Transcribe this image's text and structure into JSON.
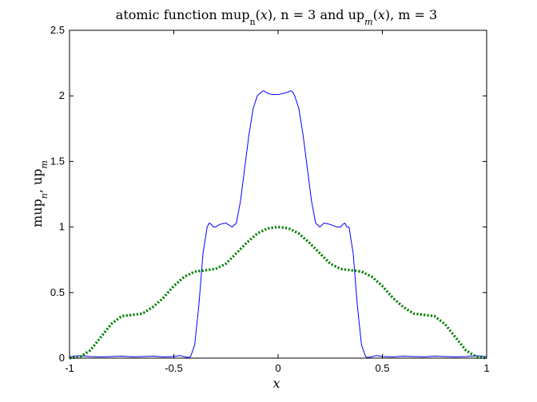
{
  "chart_data": {
    "type": "line",
    "title": {
      "prefix": "atomic function mup",
      "sub1": "n",
      "mid1": "(",
      "var1": "x",
      "mid2": "), n = 3 and up",
      "sub2": "m",
      "mid3": "(",
      "var2": "x",
      "suffix": "), m = 3"
    },
    "xlabel": "x",
    "ylabel": {
      "p1": "mup",
      "s1": "n",
      "p2": ", up",
      "s2": "m"
    },
    "xlim": [
      -1,
      1
    ],
    "ylim": [
      0,
      2.5
    ],
    "xticks": [
      -1,
      -0.5,
      0,
      0.5,
      1
    ],
    "xtick_labels": [
      "-1",
      "-0.5",
      "0",
      "0.5",
      "1"
    ],
    "yticks": [
      0,
      0.5,
      1,
      1.5,
      2,
      2.5
    ],
    "ytick_labels": [
      "0",
      "0.5",
      "1",
      "1.5",
      "2",
      "2.5"
    ],
    "grid": false,
    "legend": "none",
    "series": [
      {
        "color": "#0000ff",
        "style": "solid line",
        "x": [
          -1,
          -0.98,
          -0.95,
          -0.9,
          -0.85,
          -0.8,
          -0.75,
          -0.7,
          -0.65,
          -0.6,
          -0.55,
          -0.5,
          -0.47,
          -0.45,
          -0.43,
          -0.42,
          -0.4,
          -0.38,
          -0.36,
          -0.34,
          -0.33,
          -0.32,
          -0.31,
          -0.3,
          -0.28,
          -0.25,
          -0.22,
          -0.2,
          -0.18,
          -0.16,
          -0.14,
          -0.12,
          -0.1,
          -0.08,
          -0.07,
          -0.06,
          -0.05,
          -0.03,
          0,
          0.03,
          0.05,
          0.06,
          0.07,
          0.08,
          0.1,
          0.12,
          0.14,
          0.16,
          0.18,
          0.2,
          0.22,
          0.25,
          0.28,
          0.3,
          0.31,
          0.32,
          0.33,
          0.34,
          0.36,
          0.38,
          0.4,
          0.42,
          0.43,
          0.45,
          0.47,
          0.5,
          0.55,
          0.6,
          0.65,
          0.7,
          0.75,
          0.8,
          0.85,
          0.9,
          0.95,
          0.98,
          1
        ],
        "y": [
          0.01,
          0.015,
          0.018,
          0.012,
          0.01,
          0.012,
          0.015,
          0.01,
          0.012,
          0.015,
          0.01,
          0.012,
          0.02,
          0.01,
          0.005,
          0.01,
          0.1,
          0.4,
          0.8,
          1.0,
          1.03,
          1.02,
          1.0,
          1.0,
          1.02,
          1.03,
          1.0,
          1.03,
          1.2,
          1.45,
          1.7,
          1.9,
          2.0,
          2.03,
          2.04,
          2.03,
          2.02,
          2.01,
          2.01,
          2.02,
          2.03,
          2.04,
          2.03,
          2.0,
          1.9,
          1.7,
          1.45,
          1.2,
          1.03,
          1.0,
          1.03,
          1.02,
          1.0,
          1.0,
          1.02,
          1.03,
          1.0,
          1.0,
          0.8,
          0.4,
          0.1,
          0.01,
          0.005,
          0.01,
          0.02,
          0.012,
          0.01,
          0.015,
          0.012,
          0.01,
          0.015,
          0.012,
          0.01,
          0.012,
          0.018,
          0.015,
          0.01
        ]
      },
      {
        "color": "#008000",
        "style": "dotted line",
        "x": [
          -1,
          -0.95,
          -0.9,
          -0.85,
          -0.8,
          -0.75,
          -0.7,
          -0.65,
          -0.6,
          -0.55,
          -0.5,
          -0.45,
          -0.4,
          -0.35,
          -0.3,
          -0.25,
          -0.2,
          -0.15,
          -0.1,
          -0.05,
          0,
          0.05,
          0.1,
          0.15,
          0.2,
          0.25,
          0.3,
          0.35,
          0.4,
          0.45,
          0.5,
          0.55,
          0.6,
          0.65,
          0.7,
          0.75,
          0.8,
          0.85,
          0.9,
          0.95,
          1
        ],
        "y": [
          0.0,
          0.01,
          0.06,
          0.16,
          0.26,
          0.32,
          0.33,
          0.34,
          0.39,
          0.46,
          0.55,
          0.62,
          0.66,
          0.67,
          0.68,
          0.72,
          0.8,
          0.88,
          0.95,
          0.99,
          1.0,
          0.99,
          0.95,
          0.88,
          0.8,
          0.72,
          0.68,
          0.67,
          0.66,
          0.62,
          0.55,
          0.46,
          0.39,
          0.34,
          0.33,
          0.32,
          0.26,
          0.16,
          0.06,
          0.01,
          0.0
        ]
      }
    ]
  }
}
